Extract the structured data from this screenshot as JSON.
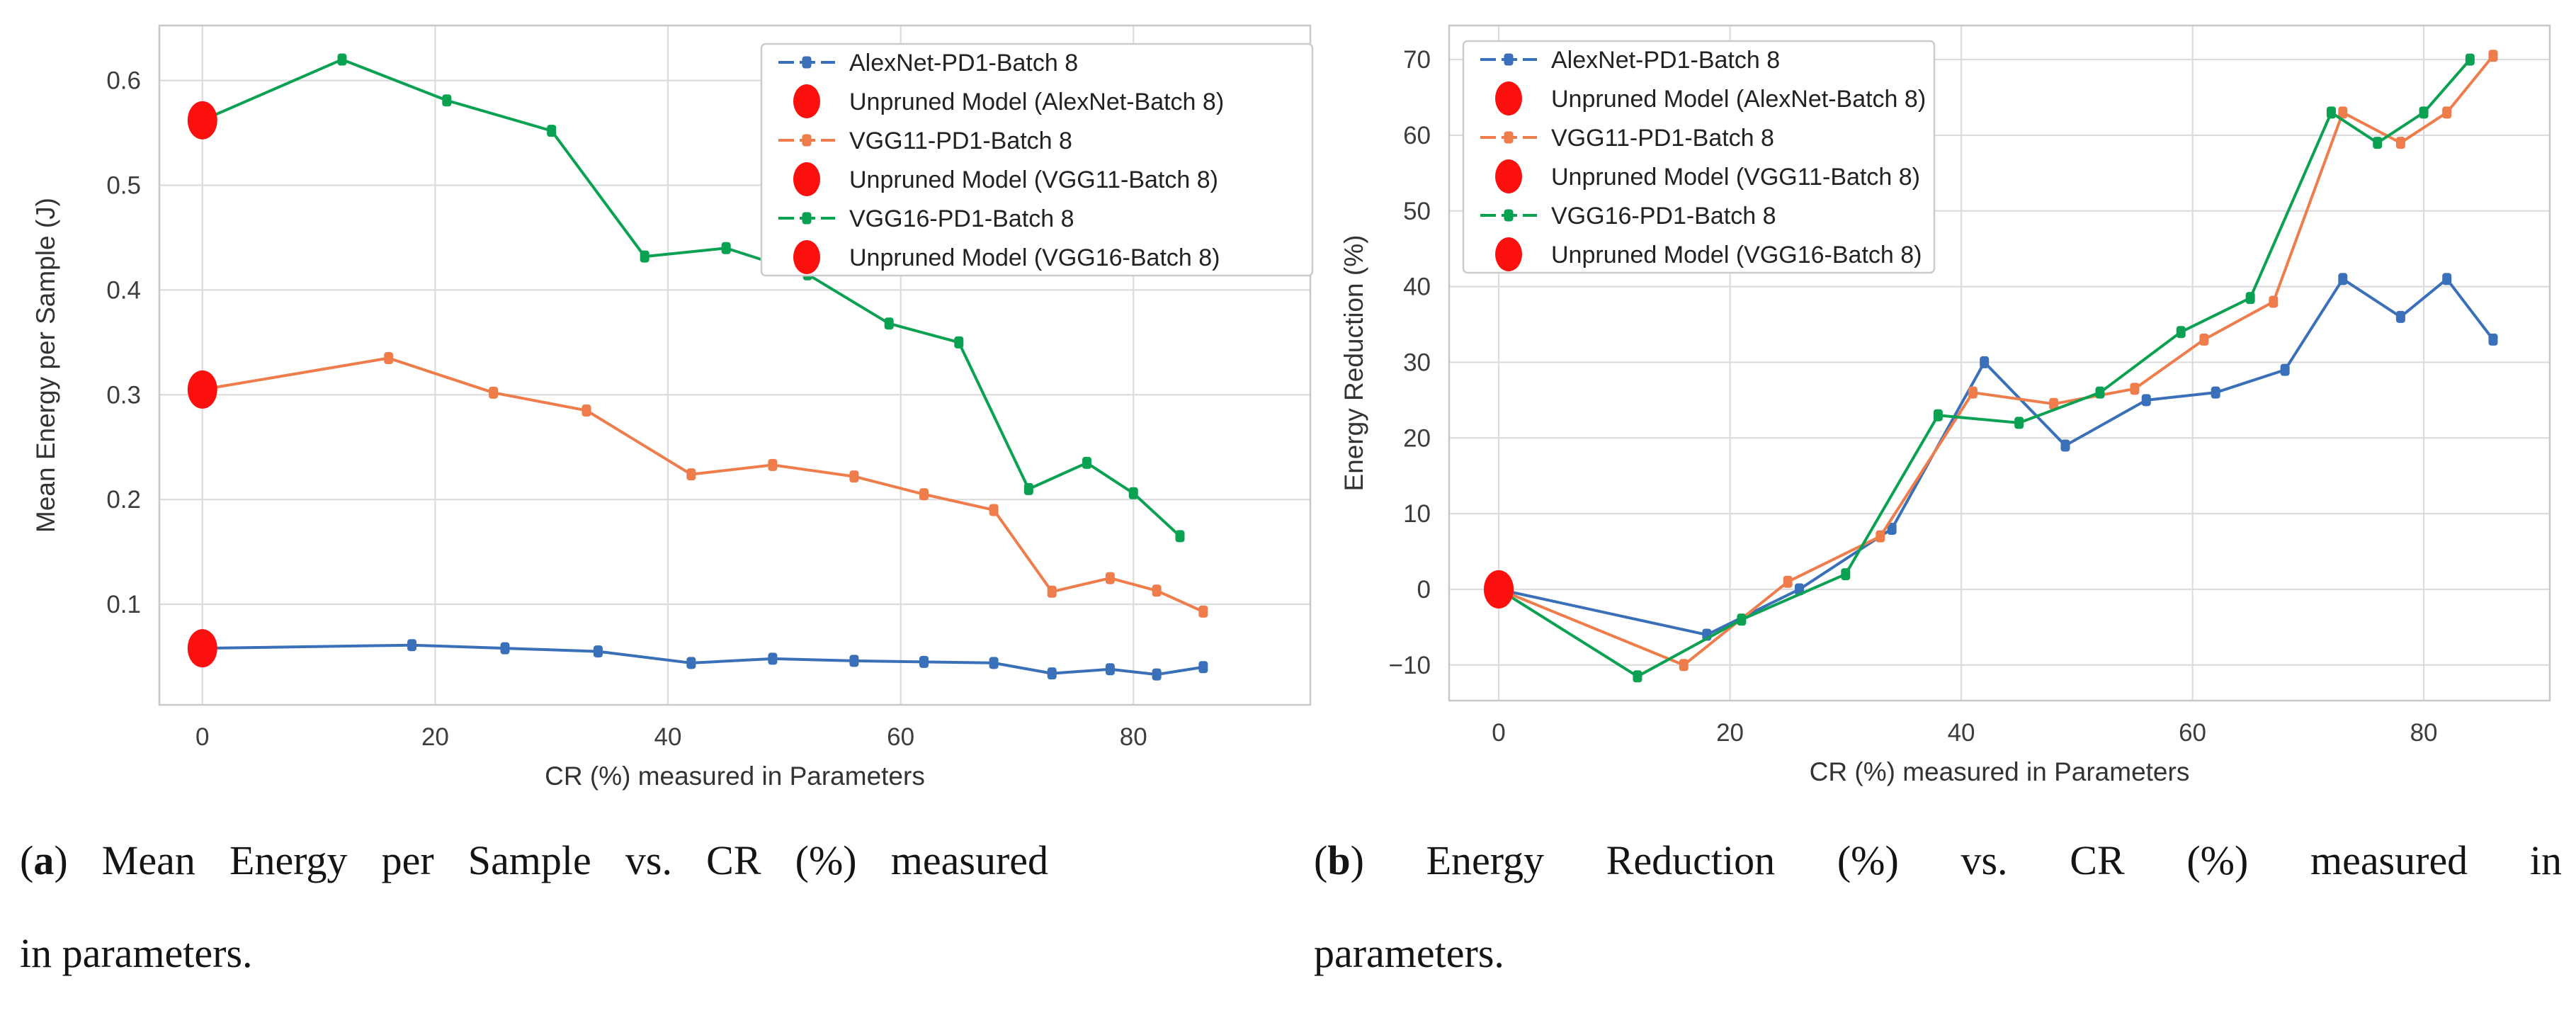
{
  "figure": {
    "background": "#ffffff"
  },
  "colors": {
    "alexnet": "#3a70b9",
    "vgg11": "#ef7d4c",
    "vgg16": "#0ba152",
    "unpruned": "#fb100e",
    "grid": "#dcdcdc",
    "plot_border": "#c8c8c8",
    "tick_text": "#3d3d3d",
    "axis_label_text": "#333333",
    "legend_text": "#222222",
    "legend_border": "#cccccc"
  },
  "chart_data": [
    {
      "id": "energy-per-sample",
      "type": "line",
      "title": "",
      "xlabel": "CR (%) measured in Parameters",
      "ylabel": "Mean Energy per Sample (J)",
      "xlim": [
        -3.7,
        95.2
      ],
      "ylim": [
        0.004,
        0.6525
      ],
      "xticks": [
        0,
        20,
        40,
        60,
        80
      ],
      "yticks": [
        0.1,
        0.2,
        0.3,
        0.4,
        0.5,
        0.6
      ],
      "grid": true,
      "legend_position": "upper-right",
      "series": [
        {
          "name": "AlexNet-PD1-Batch 8",
          "color_key": "alexnet",
          "x": [
            0,
            18,
            26,
            34,
            42,
            49,
            56,
            62,
            68,
            73,
            78,
            82,
            86
          ],
          "y": [
            0.058,
            0.061,
            0.058,
            0.055,
            0.044,
            0.048,
            0.046,
            0.045,
            0.044,
            0.034,
            0.038,
            0.033,
            0.04
          ]
        },
        {
          "name": "VGG11-PD1-Batch 8",
          "color_key": "vgg11",
          "x": [
            0,
            16,
            25,
            33,
            42,
            49,
            56,
            62,
            68,
            73,
            78,
            82,
            86
          ],
          "y": [
            0.305,
            0.335,
            0.302,
            0.285,
            0.224,
            0.233,
            0.222,
            0.205,
            0.19,
            0.112,
            0.125,
            0.113,
            0.093
          ]
        },
        {
          "name": "VGG16-PD1-Batch 8",
          "color_key": "vgg16",
          "x": [
            0,
            12,
            21,
            30,
            38,
            45,
            52,
            59,
            65,
            71,
            76,
            80,
            84
          ],
          "y": [
            0.562,
            0.62,
            0.581,
            0.552,
            0.432,
            0.44,
            0.415,
            0.368,
            0.35,
            0.21,
            0.235,
            0.206,
            0.165
          ]
        }
      ],
      "unpruned_points": [
        {
          "name": "Unpruned Model (AlexNet-Batch 8)",
          "x": 0,
          "y": 0.058
        },
        {
          "name": "Unpruned Model (VGG11-Batch 8)",
          "x": 0,
          "y": 0.305
        },
        {
          "name": "Unpruned Model (VGG16-Batch 8)",
          "x": 0,
          "y": 0.562
        }
      ],
      "legend": [
        {
          "label": "AlexNet-PD1-Batch 8",
          "swatch": "line",
          "color_key": "alexnet"
        },
        {
          "label": "Unpruned Model (AlexNet-Batch 8)",
          "swatch": "dot",
          "color_key": "unpruned"
        },
        {
          "label": "VGG11-PD1-Batch 8",
          "swatch": "line",
          "color_key": "vgg11"
        },
        {
          "label": "Unpruned Model (VGG11-Batch 8)",
          "swatch": "dot",
          "color_key": "unpruned"
        },
        {
          "label": "VGG16-PD1-Batch 8",
          "swatch": "line",
          "color_key": "vgg16"
        },
        {
          "label": "Unpruned Model (VGG16-Batch 8)",
          "swatch": "dot",
          "color_key": "unpruned"
        }
      ]
    },
    {
      "id": "energy-reduction",
      "type": "line",
      "title": "",
      "xlabel": "CR (%) measured in Parameters",
      "ylabel": "Energy Reduction (%)",
      "xlim": [
        -4.29,
        90.9
      ],
      "ylim": [
        -14.7,
        74.5
      ],
      "xticks": [
        0,
        20,
        40,
        60,
        80
      ],
      "yticks": [
        -10,
        0,
        10,
        20,
        30,
        40,
        50,
        60,
        70
      ],
      "grid": true,
      "legend_position": "upper-left",
      "series": [
        {
          "name": "AlexNet-PD1-Batch 8",
          "color_key": "alexnet",
          "x": [
            0,
            18,
            26,
            34,
            42,
            49,
            56,
            62,
            68,
            73,
            78,
            82,
            86
          ],
          "y": [
            0,
            -6,
            0,
            8,
            30,
            19,
            25,
            26,
            29,
            41,
            36,
            41,
            33
          ]
        },
        {
          "name": "VGG11-PD1-Batch 8",
          "color_key": "vgg11",
          "x": [
            0,
            16,
            25,
            33,
            41,
            48,
            55,
            61,
            67,
            73,
            78,
            82,
            86
          ],
          "y": [
            0,
            -10,
            1,
            7,
            26,
            24.5,
            26.5,
            33,
            38,
            63,
            59,
            63,
            70.5
          ]
        },
        {
          "name": "VGG16-PD1-Batch 8",
          "color_key": "vgg16",
          "x": [
            0,
            12,
            21,
            30,
            38,
            45,
            52,
            59,
            65,
            72,
            76,
            80,
            84
          ],
          "y": [
            0,
            -11.5,
            -4,
            2,
            23,
            22,
            26,
            34,
            38.5,
            63,
            59,
            63,
            70
          ]
        }
      ],
      "unpruned_points": [
        {
          "name": "Unpruned Model (AlexNet-Batch 8)",
          "x": 0,
          "y": 0
        },
        {
          "name": "Unpruned Model (VGG11-Batch 8)",
          "x": 0,
          "y": 0
        },
        {
          "name": "Unpruned Model (VGG16-Batch 8)",
          "x": 0,
          "y": 0
        }
      ],
      "legend": [
        {
          "label": "AlexNet-PD1-Batch 8",
          "swatch": "line",
          "color_key": "alexnet"
        },
        {
          "label": "Unpruned Model (AlexNet-Batch 8)",
          "swatch": "dot",
          "color_key": "unpruned"
        },
        {
          "label": "VGG11-PD1-Batch 8",
          "swatch": "line",
          "color_key": "vgg11"
        },
        {
          "label": "Unpruned Model (VGG11-Batch 8)",
          "swatch": "dot",
          "color_key": "unpruned"
        },
        {
          "label": "VGG16-PD1-Batch 8",
          "swatch": "line",
          "color_key": "vgg16"
        },
        {
          "label": "Unpruned Model (VGG16-Batch 8)",
          "swatch": "dot",
          "color_key": "unpruned"
        }
      ]
    }
  ],
  "captions": {
    "a": {
      "label": "a",
      "text_after_label": " Mean Energy per Sample vs. CR (%) measured",
      "line2": "in parameters."
    },
    "b": {
      "label": "b",
      "text_after_label": " Energy Reduction (%) vs. CR (%) measured in",
      "line2": "parameters."
    }
  }
}
